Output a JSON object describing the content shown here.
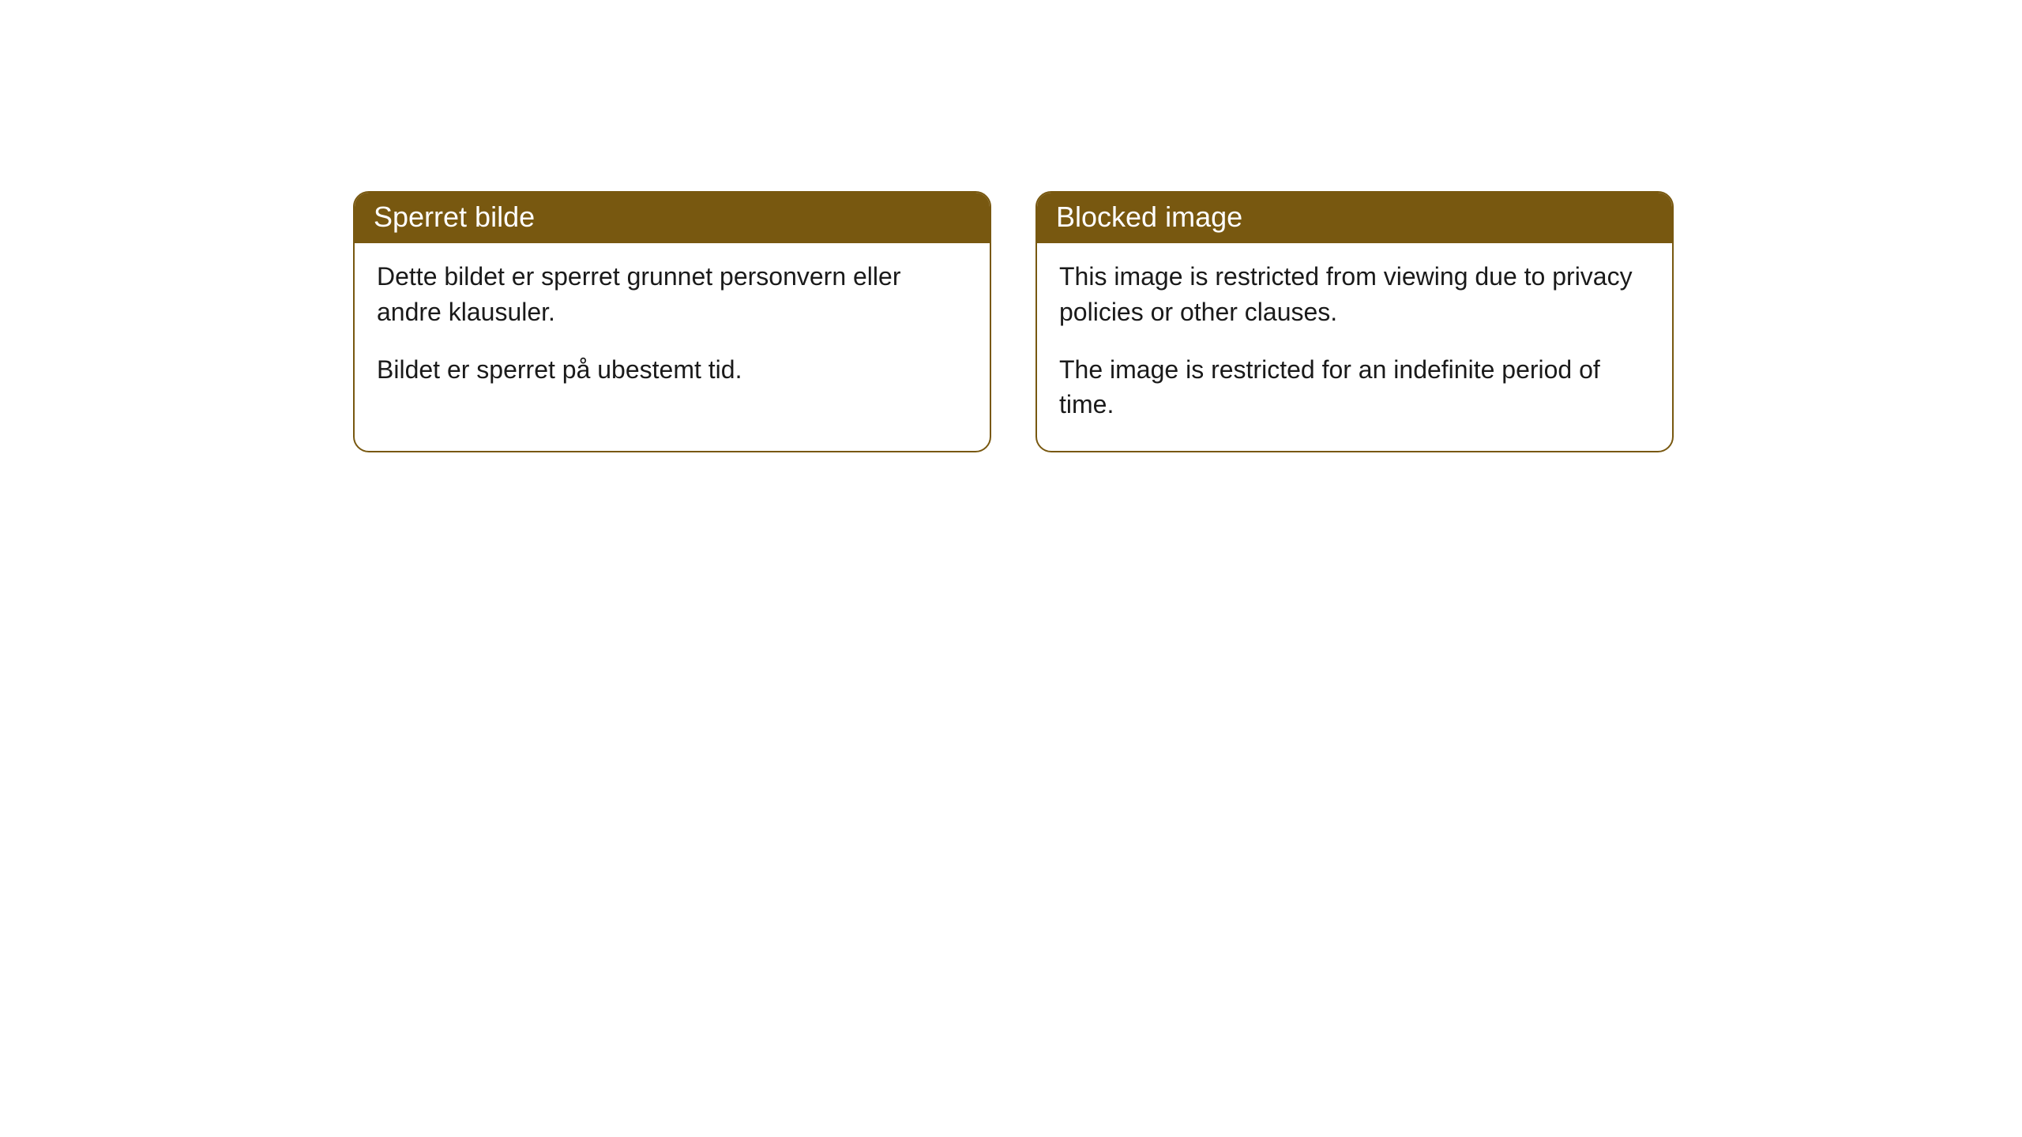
{
  "notices": [
    {
      "header": "Sperret bilde",
      "paragraph1": "Dette bildet er sperret grunnet personvern eller andre klausuler.",
      "paragraph2": "Bildet er sperret på ubestemt tid."
    },
    {
      "header": "Blocked image",
      "paragraph1": "This image is restricted from viewing due to privacy policies or other clauses.",
      "paragraph2": "The image is restricted for an indefinite period of time."
    }
  ],
  "styling": {
    "header_background": "#785810",
    "header_text_color": "#ffffff",
    "border_color": "#785810",
    "body_background": "#ffffff",
    "body_text_color": "#1a1a1a",
    "border_radius": 20,
    "header_font_size": 36,
    "body_font_size": 32
  }
}
